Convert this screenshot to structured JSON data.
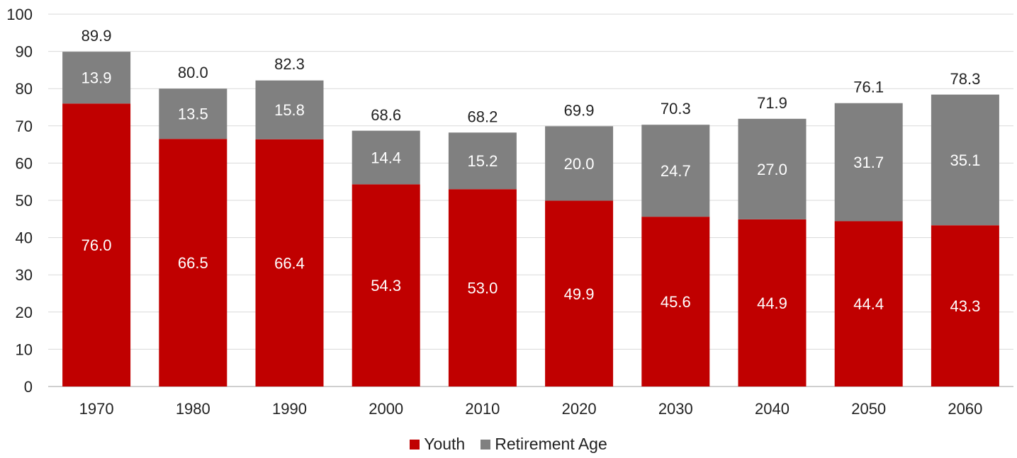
{
  "chart_data": {
    "type": "bar",
    "stacked": true,
    "title": "",
    "xlabel": "",
    "ylabel": "",
    "ylim": [
      0,
      100
    ],
    "yticks": [
      0,
      10,
      20,
      30,
      40,
      50,
      60,
      70,
      80,
      90,
      100
    ],
    "grid": true,
    "legend_position": "bottom-center",
    "categories": [
      "1970",
      "1980",
      "1990",
      "2000",
      "2010",
      "2020",
      "2030",
      "2040",
      "2050",
      "2060"
    ],
    "series": [
      {
        "name": "Youth",
        "color": "#C00000",
        "values": [
          76.0,
          66.5,
          66.4,
          54.3,
          53.0,
          49.9,
          45.6,
          44.9,
          44.4,
          43.3
        ],
        "labels": [
          "76.0",
          "66.5",
          "66.4",
          "54.3",
          "53.0",
          "49.9",
          "45.6",
          "44.9",
          "44.4",
          "43.3"
        ]
      },
      {
        "name": "Retirement Age",
        "color": "#808080",
        "values": [
          13.9,
          13.5,
          15.8,
          14.4,
          15.2,
          20.0,
          24.7,
          27.0,
          31.7,
          35.1
        ],
        "labels": [
          "13.9",
          "13.5",
          "15.8",
          "14.4",
          "15.2",
          "20.0",
          "24.7",
          "27.0",
          "31.7",
          "35.1"
        ]
      }
    ],
    "totals": [
      89.9,
      80.0,
      82.3,
      68.6,
      68.2,
      69.9,
      70.3,
      71.9,
      76.1,
      78.3
    ],
    "total_labels": [
      "89.9",
      "80.0",
      "82.3",
      "68.6",
      "68.2",
      "69.9",
      "70.3",
      "71.9",
      "76.1",
      "78.3"
    ]
  }
}
